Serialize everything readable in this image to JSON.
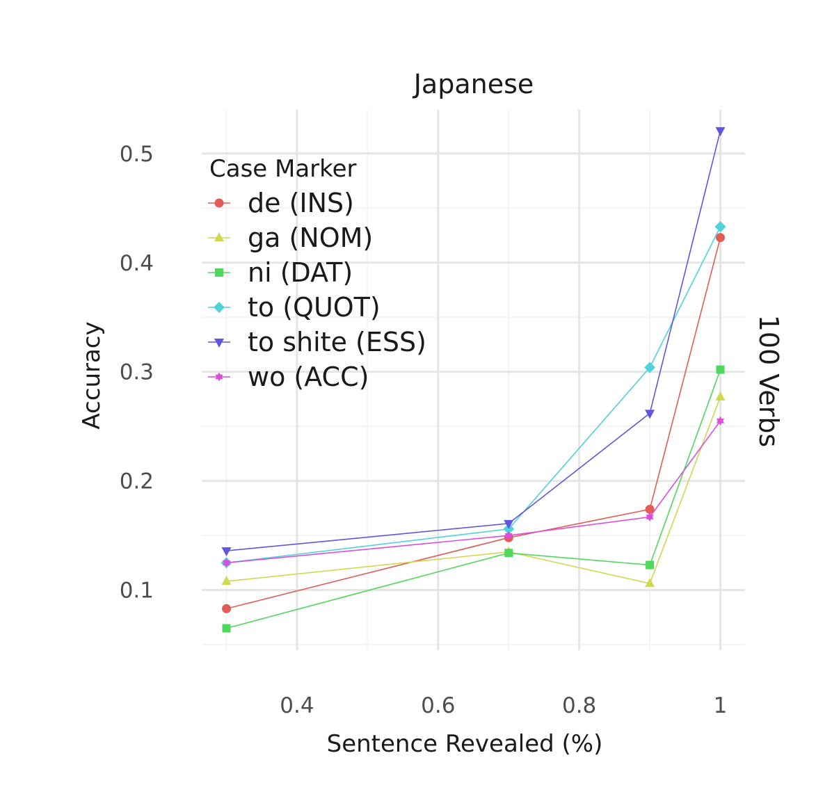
{
  "chart_data": {
    "type": "line",
    "title": "Japanese",
    "strip_label": "100 Verbs",
    "xlabel": "Sentence Revealed (%)",
    "ylabel": "Accuracy",
    "x": [
      0.3,
      0.7,
      0.9,
      1.0
    ],
    "xlim": [
      0.265,
      1.035
    ],
    "ylim": [
      0.045,
      0.54
    ],
    "x_ticks": [
      0.4,
      0.6,
      0.8,
      1.0
    ],
    "x_tick_labels": [
      "0.4",
      "0.6",
      "0.8",
      "1"
    ],
    "y_ticks": [
      0.1,
      0.2,
      0.3,
      0.4,
      0.5
    ],
    "y_tick_labels": [
      "0.1",
      "0.2",
      "0.3",
      "0.4",
      "0.5"
    ],
    "grid": true,
    "legend_title": "Case Marker",
    "legend_position": "top-left inside",
    "series": [
      {
        "name": "de (INS)",
        "color": "#e05c55",
        "marker": "circle",
        "values": [
          0.083,
          0.148,
          0.174,
          0.423
        ]
      },
      {
        "name": "ga (NOM)",
        "color": "#cfd84f",
        "marker": "triangle-up",
        "values": [
          0.108,
          0.135,
          0.106,
          0.277
        ]
      },
      {
        "name": "ni (DAT)",
        "color": "#4fd85c",
        "marker": "square",
        "values": [
          0.065,
          0.134,
          0.123,
          0.302
        ]
      },
      {
        "name": "to (QUOT)",
        "color": "#4fd2d8",
        "marker": "diamond",
        "values": [
          0.125,
          0.156,
          0.304,
          0.433
        ]
      },
      {
        "name": "to shite (ESS)",
        "color": "#5f55de",
        "marker": "triangle-down",
        "values": [
          0.136,
          0.161,
          0.262,
          0.521
        ]
      },
      {
        "name": "wo (ACC)",
        "color": "#da4fd8",
        "marker": "star",
        "values": [
          0.125,
          0.15,
          0.167,
          0.255
        ]
      }
    ]
  }
}
